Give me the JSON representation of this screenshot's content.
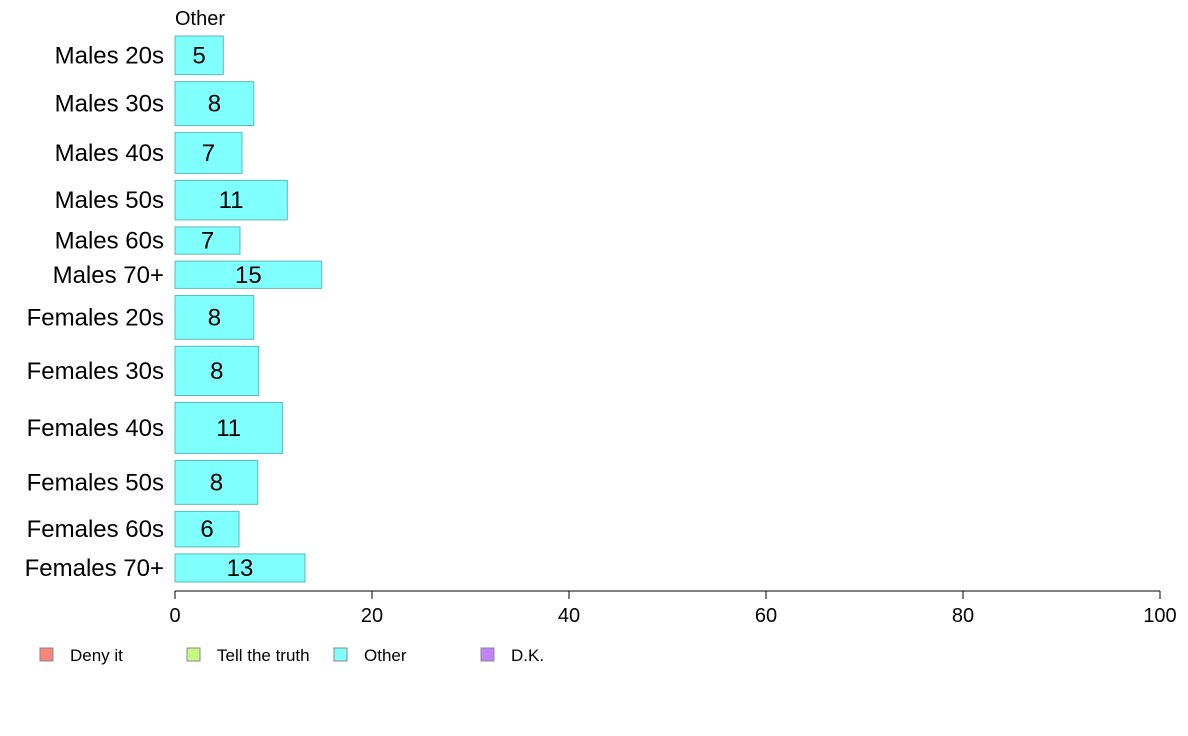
{
  "chart_data": {
    "type": "bar",
    "orientation": "horizontal",
    "panel_title": "Other",
    "categories": [
      "Males 20s",
      "Males 30s",
      "Males 40s",
      "Males 50s",
      "Males 60s",
      "Males 70+",
      "Females 20s",
      "Females 30s",
      "Females 40s",
      "Females 50s",
      "Females 60s",
      "Females 70+"
    ],
    "values": [
      5,
      8,
      7,
      11,
      7,
      15,
      8,
      8,
      11,
      8,
      6,
      13
    ],
    "bar_values": [
      4.9,
      8.0,
      6.8,
      11.4,
      6.6,
      14.9,
      8.0,
      8.5,
      10.9,
      8.4,
      6.5,
      13.2
    ],
    "relative_widths": [
      0.88,
      1.0,
      0.93,
      0.9,
      0.62,
      0.62,
      1.0,
      1.12,
      1.16,
      1.0,
      0.81,
      0.64
    ],
    "xlim": [
      0,
      100
    ],
    "xticks": [
      0,
      20,
      40,
      60,
      80,
      100
    ],
    "grid": false,
    "bar_color": "#80ffff",
    "bar_edge_color": "#5cb8b8",
    "legend_position": "bottom-left",
    "legend": [
      {
        "label": "Deny it",
        "color": "#f8847c"
      },
      {
        "label": "Tell the truth",
        "color": "#c6f884"
      },
      {
        "label": "Other",
        "color": "#80ffff"
      },
      {
        "label": "D.K.",
        "color": "#c084f8"
      }
    ]
  }
}
